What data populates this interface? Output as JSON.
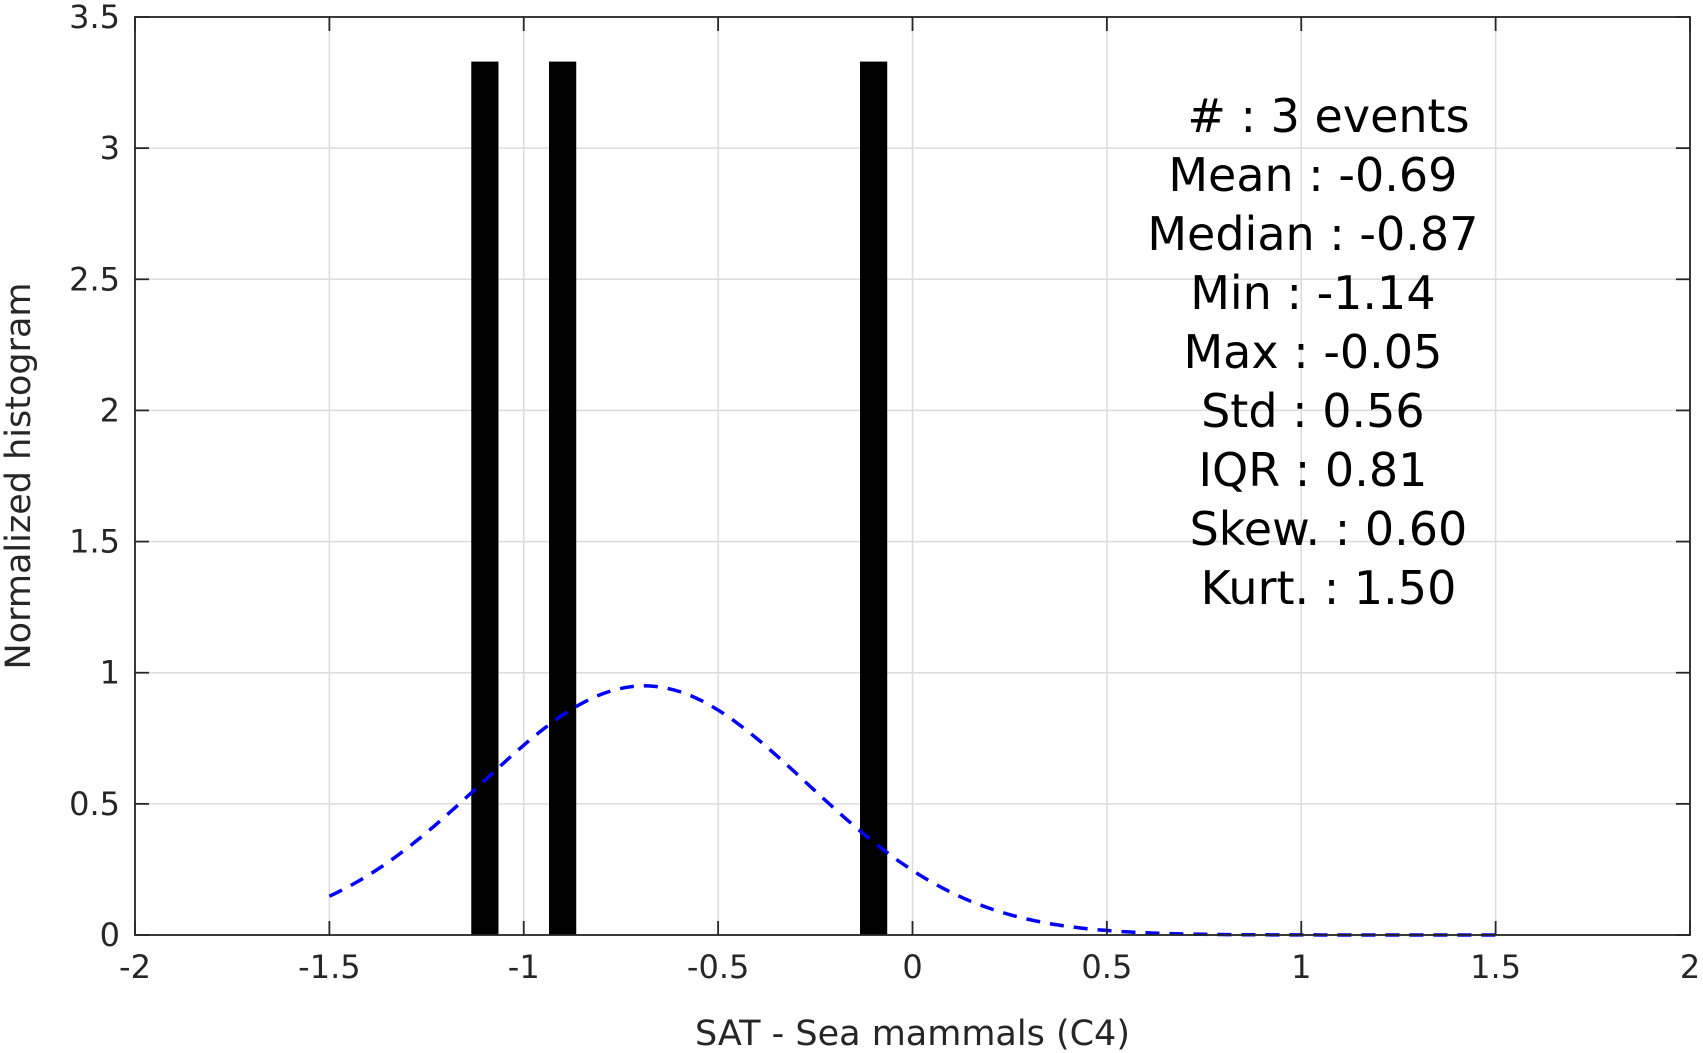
{
  "chart_data": {
    "type": "bar",
    "xlabel": "SAT - Sea mammals (C4)",
    "ylabel": "Normalized histogram",
    "xlim": [
      -2,
      2
    ],
    "ylim": [
      0,
      3.5
    ],
    "xticks": [
      -2,
      -1.5,
      -1,
      -0.5,
      0,
      0.5,
      1,
      1.5,
      2
    ],
    "xtick_labels": [
      "-2",
      "-1.5",
      "-1",
      "-0.5",
      "0",
      "0.5",
      "1",
      "1.5",
      "2"
    ],
    "yticks": [
      0,
      0.5,
      1,
      1.5,
      2,
      2.5,
      3,
      3.5
    ],
    "ytick_labels": [
      "0",
      "0.5",
      "1",
      "1.5",
      "2",
      "2.5",
      "3",
      "3.5"
    ],
    "grid": true,
    "bars": [
      {
        "x": -1.1,
        "width": 0.07,
        "height": 3.33
      },
      {
        "x": -0.9,
        "width": 0.07,
        "height": 3.33
      },
      {
        "x": -0.1,
        "width": 0.07,
        "height": 3.33
      }
    ],
    "bar_color": "#000000",
    "fit_curve": {
      "style": "dashed",
      "color": "#0000ff",
      "mean": -0.69,
      "std": 0.42,
      "x_range": [
        -1.5,
        1.5
      ],
      "peak": 0.95
    },
    "annotations": [
      {
        "left": "#",
        "right": " : 3 events",
        "x_anchor": 1.4
      },
      {
        "left": "Mean",
        "right": " : -0.69",
        "x_anchor": 1.36
      },
      {
        "left": "Median",
        "right": " : -0.87",
        "x_anchor": 1.36
      },
      {
        "left": "Min",
        "right": " : -1.14",
        "x_anchor": 1.36
      },
      {
        "left": "Max",
        "right": " : -0.05",
        "x_anchor": 1.36
      },
      {
        "left": "Std",
        "right": " : 0.56",
        "x_anchor": 1.36
      },
      {
        "left": "IQR",
        "right": " : 0.81",
        "x_anchor": 1.36
      },
      {
        "left": "Skew.",
        "right": " : 0.60",
        "x_anchor": 1.4
      },
      {
        "left": "Kurt.",
        "right": " : 1.50",
        "x_anchor": 1.4
      }
    ]
  }
}
